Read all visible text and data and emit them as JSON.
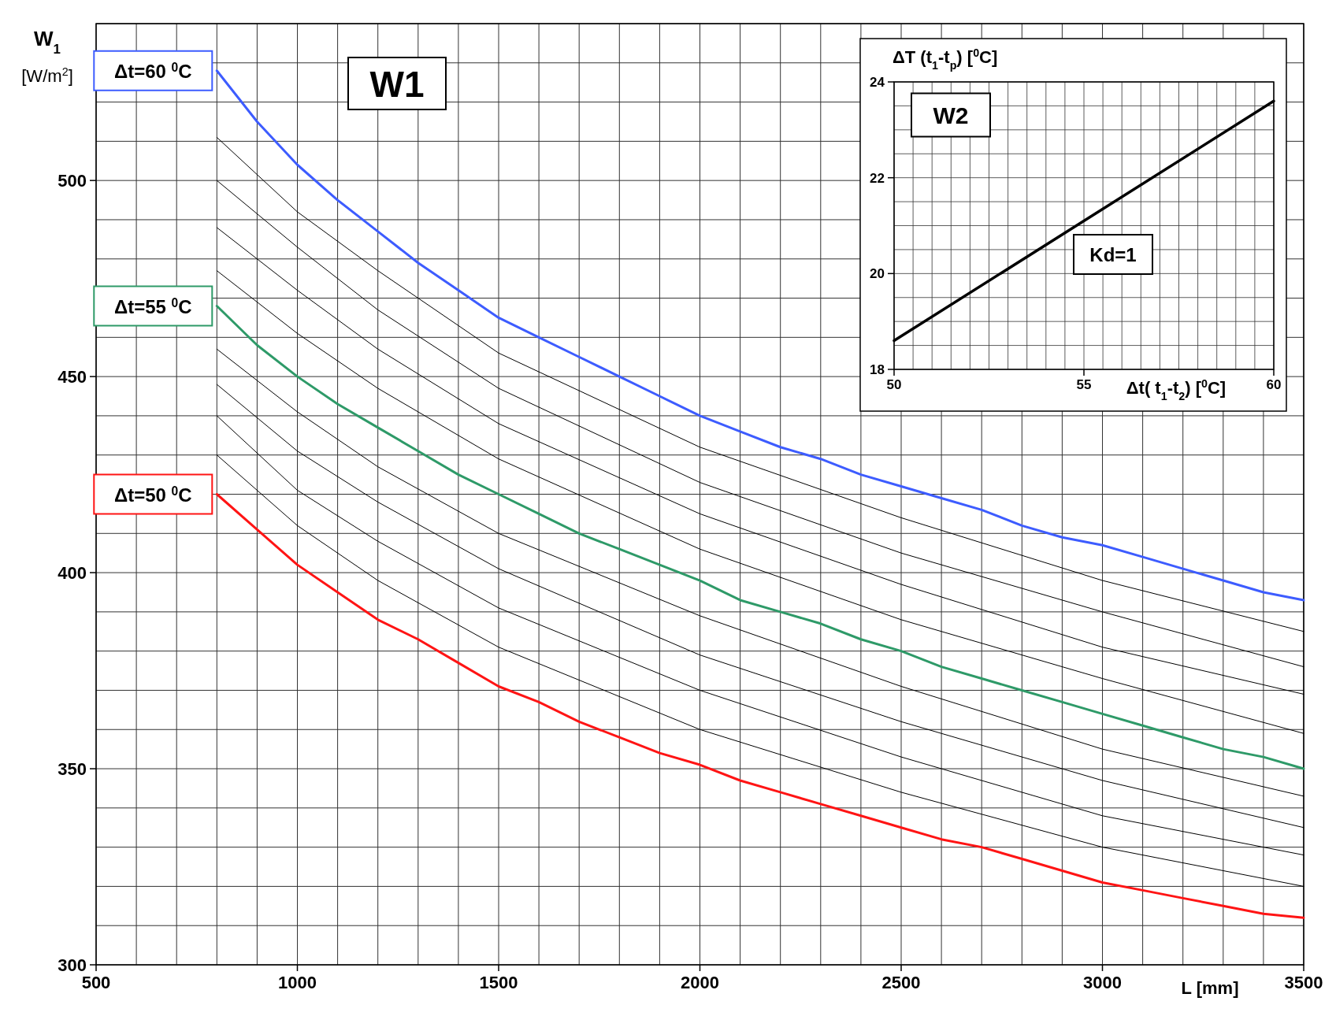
{
  "chart_data": [
    {
      "type": "line",
      "xlabel": "L [mm]",
      "ylabel": "W$_{1}$ [W/m$^{2}$]",
      "annotations": [
        "W1"
      ],
      "grid": true,
      "legend": false,
      "marker": "none",
      "line_style": "solid",
      "xlim": [
        500,
        3500
      ],
      "ylim": [
        300,
        540
      ],
      "xticks": [
        500,
        {
          "value": 600,
          "label": null
        },
        {
          "value": 700,
          "label": null
        },
        {
          "value": 800,
          "label": null
        },
        {
          "value": 900,
          "label": null
        },
        1000,
        {
          "value": 1100,
          "label": null
        },
        {
          "value": 1200,
          "label": null
        },
        {
          "value": 1300,
          "label": null
        },
        {
          "value": 1400,
          "label": null
        },
        1500,
        {
          "value": 1600,
          "label": null
        },
        {
          "value": 1700,
          "label": null
        },
        {
          "value": 1800,
          "label": null
        },
        {
          "value": 1900,
          "label": null
        },
        2000,
        {
          "value": 2100,
          "label": null
        },
        {
          "value": 2200,
          "label": null
        },
        {
          "value": 2300,
          "label": null
        },
        {
          "value": 2400,
          "label": null
        },
        2500,
        {
          "value": 2600,
          "label": null
        },
        {
          "value": 2700,
          "label": null
        },
        {
          "value": 2800,
          "label": null
        },
        {
          "value": 2900,
          "label": null
        },
        3000,
        {
          "value": 3100,
          "label": null
        },
        {
          "value": 3200,
          "label": null
        },
        {
          "value": 3300,
          "label": null
        },
        {
          "value": 3400,
          "label": null
        },
        3500
      ],
      "yticks": [
        300,
        {
          "value": 310,
          "label": null
        },
        {
          "value": 320,
          "label": null
        },
        {
          "value": 330,
          "label": null
        },
        {
          "value": 340,
          "label": null
        },
        350,
        {
          "value": 360,
          "label": null
        },
        {
          "value": 370,
          "label": null
        },
        {
          "value": 380,
          "label": null
        },
        {
          "value": 390,
          "label": null
        },
        400,
        {
          "value": 410,
          "label": null
        },
        {
          "value": 420,
          "label": null
        },
        {
          "value": 430,
          "label": null
        },
        {
          "value": 440,
          "label": null
        },
        450,
        {
          "value": 460,
          "label": null
        },
        {
          "value": 470,
          "label": null
        },
        {
          "value": 480,
          "label": null
        },
        {
          "value": 490,
          "label": null
        },
        500,
        {
          "value": 510,
          "label": null
        },
        {
          "value": 520,
          "label": null
        },
        {
          "value": 530,
          "label": null
        },
        {
          "value": 540,
          "label": null
        }
      ],
      "x": [
        800,
        900,
        1000,
        1100,
        1200,
        1300,
        1400,
        1500,
        1600,
        1700,
        1800,
        1900,
        2000,
        2100,
        2200,
        2300,
        2400,
        2500,
        2600,
        2700,
        2800,
        2900,
        3000,
        3100,
        3200,
        3300,
        3400,
        3500
      ],
      "series": [
        {
          "name": "Δt=50 $^{0}$C",
          "color": "#ff1414",
          "values": [
            420,
            411,
            402,
            395,
            388,
            383,
            377,
            371,
            367,
            362,
            358,
            354,
            351,
            347,
            344,
            341,
            338,
            335,
            332,
            330,
            327,
            324,
            321,
            319,
            317,
            315,
            313,
            312
          ]
        },
        {
          "color": "#000000",
          "x": [
            800,
            1000,
            1200,
            1500,
            2000,
            2500,
            3000,
            3500
          ],
          "values": [
            430,
            412,
            398,
            381,
            360,
            344,
            330,
            320
          ]
        },
        {
          "color": "#000000",
          "x": [
            800,
            1000,
            1200,
            1500,
            2000,
            2500,
            3000,
            3500
          ],
          "values": [
            440,
            421,
            408,
            391,
            370,
            353,
            338,
            328
          ]
        },
        {
          "color": "#000000",
          "x": [
            800,
            1000,
            1200,
            1500,
            2000,
            2500,
            3000,
            3500
          ],
          "values": [
            448,
            431,
            418,
            401,
            379,
            362,
            347,
            335
          ]
        },
        {
          "color": "#000000",
          "x": [
            800,
            1000,
            1200,
            1500,
            2000,
            2500,
            3000,
            3500
          ],
          "values": [
            457,
            441,
            427,
            410,
            389,
            371,
            355,
            343
          ]
        },
        {
          "name": "Δt=55 $^{0}$C",
          "color": "#2e9a68",
          "values": [
            468,
            458,
            450,
            443,
            437,
            431,
            425,
            420,
            415,
            410,
            406,
            402,
            398,
            393,
            390,
            387,
            383,
            380,
            376,
            373,
            370,
            367,
            364,
            361,
            358,
            355,
            353,
            350
          ]
        },
        {
          "color": "#000000",
          "x": [
            800,
            1000,
            1200,
            1500,
            2000,
            2500,
            3000,
            3500
          ],
          "values": [
            477,
            461,
            447,
            429,
            406,
            388,
            373,
            359
          ]
        },
        {
          "color": "#000000",
          "x": [
            800,
            1000,
            1200,
            1500,
            2000,
            2500,
            3000,
            3500
          ],
          "values": [
            488,
            472,
            457,
            438,
            415,
            397,
            381,
            369
          ]
        },
        {
          "color": "#000000",
          "x": [
            800,
            1000,
            1200,
            1500,
            2000,
            2500,
            3000,
            3500
          ],
          "values": [
            500,
            483,
            467,
            447,
            423,
            405,
            390,
            376
          ]
        },
        {
          "color": "#000000",
          "x": [
            800,
            1000,
            1200,
            1500,
            2000,
            2500,
            3000,
            3500
          ],
          "values": [
            511,
            492,
            477,
            456,
            432,
            414,
            398,
            385
          ]
        },
        {
          "name": "Δt=60 $^{0}$C",
          "color": "#3d5cff",
          "values": [
            528,
            515,
            504,
            495,
            487,
            479,
            472,
            465,
            460,
            455,
            450,
            445,
            440,
            436,
            432,
            429,
            425,
            422,
            419,
            416,
            412,
            409,
            407,
            404,
            401,
            398,
            395,
            393
          ]
        }
      ]
    },
    {
      "type": "line",
      "xlabel": "Δt( t$_{1}$-t$_{2}$) [$^{0}$C]",
      "ylabel": "ΔT (t$_{1}$-t$_{p}$) [$^{0}$C]",
      "annotations": [
        "W2",
        "Kd=1"
      ],
      "grid": true,
      "legend": false,
      "marker": "none",
      "line_style": "solid",
      "xlim": [
        50,
        60
      ],
      "ylim": [
        18,
        24
      ],
      "xticks": [
        50,
        {
          "value": 50.5,
          "label": null
        },
        {
          "value": 51,
          "label": null
        },
        {
          "value": 51.5,
          "label": null
        },
        {
          "value": 52,
          "label": null
        },
        {
          "value": 52.5,
          "label": null
        },
        {
          "value": 53,
          "label": null
        },
        {
          "value": 53.5,
          "label": null
        },
        {
          "value": 54,
          "label": null
        },
        {
          "value": 54.5,
          "label": null
        },
        55,
        {
          "value": 55.5,
          "label": null
        },
        {
          "value": 56,
          "label": null
        },
        {
          "value": 56.5,
          "label": null
        },
        {
          "value": 57,
          "label": null
        },
        {
          "value": 57.5,
          "label": null
        },
        {
          "value": 58,
          "label": null
        },
        {
          "value": 58.5,
          "label": null
        },
        {
          "value": 59,
          "label": null
        },
        {
          "value": 59.5,
          "label": null
        },
        60
      ],
      "yticks": [
        18,
        {
          "value": 18.5,
          "label": null
        },
        {
          "value": 19,
          "label": null
        },
        {
          "value": 19.5,
          "label": null
        },
        20,
        {
          "value": 20.5,
          "label": null
        },
        {
          "value": 21,
          "label": null
        },
        {
          "value": 21.5,
          "label": null
        },
        22,
        {
          "value": 22.5,
          "label": null
        },
        {
          "value": 23,
          "label": null
        },
        {
          "value": 23.5,
          "label": null
        },
        24
      ],
      "x": [
        50,
        60
      ],
      "series": [
        {
          "color": "#000000",
          "values": [
            18.6,
            23.6
          ]
        }
      ]
    }
  ]
}
